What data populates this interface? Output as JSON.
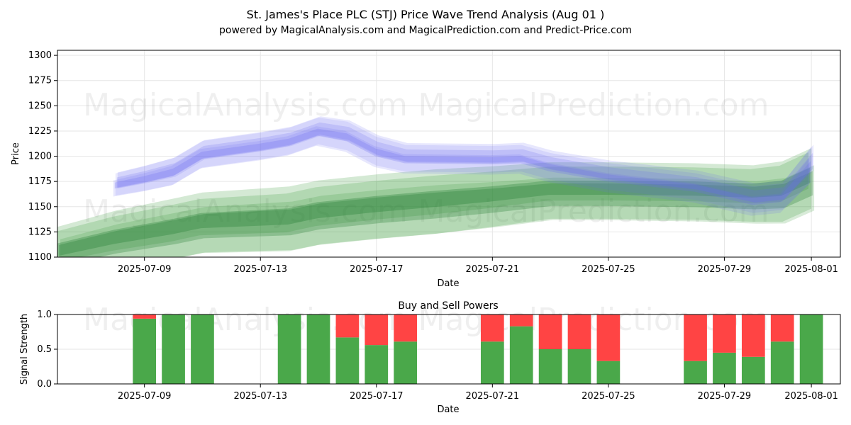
{
  "title": "St. James's Place PLC (STJ) Price Wave Trend Analysis (Aug 01 )",
  "subtitle": "powered by MagicalAnalysis.com and MagicalPrediction.com and Predict-Price.com",
  "watermarks": [
    "MagicalAnalysis.com",
    "MagicalPrediction.com"
  ],
  "chart_data": [
    {
      "type": "area",
      "xlabel": "Date",
      "ylabel": "Price",
      "ylim": [
        1100,
        1305
      ],
      "xlim": [
        "2025-07-06",
        "2025-08-02"
      ],
      "yticks": [
        1100,
        1125,
        1150,
        1175,
        1200,
        1225,
        1250,
        1275,
        1300
      ],
      "xticks": [
        "2025-07-09",
        "2025-07-13",
        "2025-07-17",
        "2025-07-21",
        "2025-07-25",
        "2025-07-29",
        "2025-08-01"
      ],
      "grid": true,
      "colors": {
        "blue_band": "#6a6af0",
        "green_band": "#3a9a3a",
        "green_dark": "#1f7a2e"
      },
      "blue_wave": {
        "x": [
          "2025-07-08",
          "2025-07-09",
          "2025-07-10",
          "2025-07-11",
          "2025-07-13",
          "2025-07-14",
          "2025-07-15",
          "2025-07-16",
          "2025-07-17",
          "2025-07-18",
          "2025-07-21",
          "2025-07-22",
          "2025-07-23",
          "2025-07-25",
          "2025-07-28",
          "2025-07-30",
          "2025-07-31",
          "2025-08-01"
        ],
        "center": [
          1172,
          1178,
          1185,
          1202,
          1210,
          1215,
          1225,
          1220,
          1205,
          1198,
          1197,
          1198,
          1190,
          1180,
          1170,
          1157,
          1160,
          1192
        ],
        "spread": [
          10,
          11,
          12,
          12,
          12,
          12,
          12,
          13,
          13,
          12,
          12,
          12,
          12,
          12,
          12,
          12,
          12,
          16
        ]
      },
      "green_wave": {
        "x": [
          "2025-07-06",
          "2025-07-08",
          "2025-07-10",
          "2025-07-11",
          "2025-07-14",
          "2025-07-15",
          "2025-07-17",
          "2025-07-19",
          "2025-07-21",
          "2025-07-23",
          "2025-07-25",
          "2025-07-28",
          "2025-07-30",
          "2025-07-31",
          "2025-08-01"
        ],
        "center": [
          1105,
          1118,
          1128,
          1134,
          1138,
          1144,
          1150,
          1155,
          1160,
          1166,
          1166,
          1165,
          1163,
          1165,
          1178
        ],
        "spread": [
          25,
          28,
          30,
          30,
          32,
          32,
          32,
          32,
          30,
          28,
          28,
          28,
          28,
          30,
          30
        ]
      }
    },
    {
      "type": "bar",
      "title": "Buy and Sell Powers",
      "xlabel": "Date",
      "ylabel": "Signal Strength",
      "ylim": [
        0,
        1
      ],
      "yticks": [
        "0.0",
        "0.5",
        "1.0"
      ],
      "xticks": [
        "2025-07-09",
        "2025-07-13",
        "2025-07-17",
        "2025-07-21",
        "2025-07-25",
        "2025-07-29",
        "2025-08-01"
      ],
      "grid": true,
      "colors": {
        "buy": "#4aa84a",
        "sell": "#ff4444"
      },
      "dates": [
        "2025-07-09",
        "2025-07-10",
        "2025-07-11",
        "2025-07-14",
        "2025-07-15",
        "2025-07-16",
        "2025-07-17",
        "2025-07-18",
        "2025-07-21",
        "2025-07-22",
        "2025-07-23",
        "2025-07-24",
        "2025-07-25",
        "2025-07-28",
        "2025-07-29",
        "2025-07-30",
        "2025-07-31",
        "2025-08-01"
      ],
      "buy": [
        0.94,
        1.0,
        1.0,
        1.0,
        1.0,
        0.67,
        0.56,
        0.61,
        0.61,
        0.83,
        0.5,
        0.5,
        0.33,
        0.33,
        0.45,
        0.39,
        0.61,
        1.0
      ]
    }
  ]
}
